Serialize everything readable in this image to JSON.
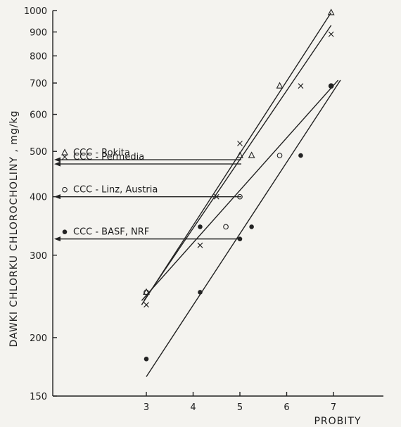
{
  "chart_data": {
    "type": "line",
    "title": "",
    "xlabel": "PROBITY",
    "ylabel": "DAWKI CHLORKU CHLOROCHOLINY , mg/kg",
    "y_scale": "log",
    "xlim": [
      2,
      8
    ],
    "ylim": [
      150,
      1000
    ],
    "x_ticks": [
      3,
      4,
      5,
      6,
      7
    ],
    "y_ticks": [
      150,
      200,
      300,
      400,
      500,
      600,
      700,
      800,
      900,
      1000
    ],
    "legend_placement": "inside-left",
    "series": [
      {
        "name": "CCC - Rokita",
        "marker": "triangle",
        "ld50": 480,
        "points": [
          [
            3,
            250
          ],
          [
            5,
            490
          ],
          [
            5.25,
            490
          ],
          [
            5.85,
            690
          ],
          [
            6.95,
            990
          ]
        ],
        "fit_line": [
          [
            2.9,
            235
          ],
          [
            6.95,
            990
          ]
        ]
      },
      {
        "name": "CCC - Permedia",
        "marker": "x",
        "ld50": 470,
        "points": [
          [
            3,
            235
          ],
          [
            4.15,
            315
          ],
          [
            4.5,
            400
          ],
          [
            5,
            520
          ],
          [
            6.3,
            690
          ],
          [
            6.95,
            890
          ]
        ],
        "fit_line": [
          [
            2.95,
            240
          ],
          [
            6.95,
            930
          ]
        ]
      },
      {
        "name": "CCC - Linz, Austria",
        "marker": "circle",
        "ld50": 400,
        "points": [
          [
            3,
            250
          ],
          [
            4.7,
            345
          ],
          [
            5,
            400
          ],
          [
            5.85,
            490
          ],
          [
            6.95,
            690
          ]
        ],
        "fit_line": [
          [
            2.9,
            240
          ],
          [
            7.1,
            710
          ]
        ]
      },
      {
        "name": "CCC - BASF, NRF",
        "marker": "dot",
        "ld50": 325,
        "points": [
          [
            3,
            180
          ],
          [
            4.15,
            250
          ],
          [
            4.15,
            345
          ],
          [
            5,
            325
          ],
          [
            5.25,
            345
          ],
          [
            6.3,
            490
          ],
          [
            6.95,
            690
          ]
        ],
        "fit_line": [
          [
            3,
            165
          ],
          [
            7.15,
            710
          ]
        ]
      }
    ]
  }
}
